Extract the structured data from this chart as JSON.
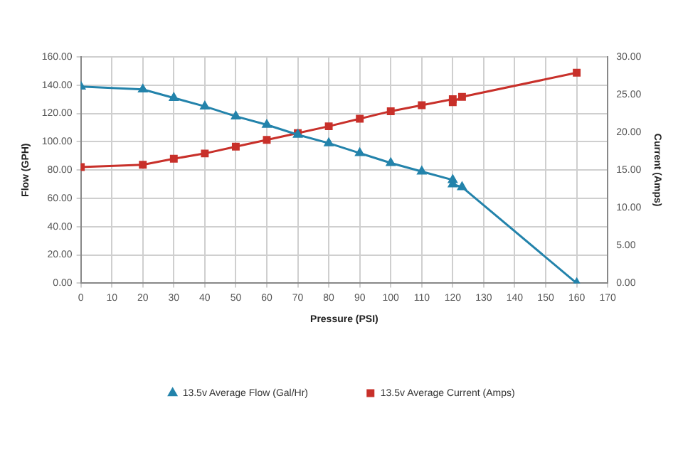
{
  "chart_data": {
    "type": "line",
    "xlabel": "Pressure (PSI)",
    "ylabel": "Flow (GPH)",
    "y2label": "Current (Amps)",
    "xlim": [
      0,
      170
    ],
    "xticks": [
      0,
      10,
      20,
      30,
      40,
      50,
      60,
      70,
      80,
      90,
      100,
      110,
      120,
      130,
      140,
      150,
      160,
      170
    ],
    "ylim": [
      0,
      160
    ],
    "yticks": [
      {
        "value": 0,
        "label": "0.00"
      },
      {
        "value": 20,
        "label": "20.00"
      },
      {
        "value": 40,
        "label": "40.00"
      },
      {
        "value": 60,
        "label": "60.00"
      },
      {
        "value": 80,
        "label": "80.00"
      },
      {
        "value": 100,
        "label": "100.00"
      },
      {
        "value": 120,
        "label": "120.00"
      },
      {
        "value": 140,
        "label": "140.00"
      },
      {
        "value": 160,
        "label": "160.00"
      }
    ],
    "y2lim": [
      0,
      30
    ],
    "y2ticks": [
      {
        "value": 0,
        "label": "0.00"
      },
      {
        "value": 5,
        "label": "5.00"
      },
      {
        "value": 10,
        "label": "10.00"
      },
      {
        "value": 15,
        "label": "15.00"
      },
      {
        "value": 20,
        "label": "20.00"
      },
      {
        "value": 25,
        "label": "25.00"
      },
      {
        "value": 30,
        "label": "30.00"
      }
    ],
    "grid": true,
    "legend": "bottom",
    "series": [
      {
        "name": "13.5v Average Flow (Gal/Hr)",
        "color": "#2383ab",
        "marker": "triangle",
        "x": [
          0,
          20,
          30,
          40,
          50,
          60,
          70,
          80,
          90,
          100,
          110,
          120,
          120,
          123,
          160
        ],
        "values": [
          139,
          137,
          131,
          125,
          118,
          112,
          105,
          99,
          92,
          85,
          79,
          73,
          70,
          68,
          0
        ]
      },
      {
        "name": "13.5v Average Current (Amps)",
        "color": "#c8302a",
        "marker": "square",
        "axis": "y2",
        "x": [
          0,
          20,
          30,
          40,
          50,
          60,
          70,
          80,
          90,
          100,
          110,
          120,
          120,
          123,
          160
        ],
        "values": [
          15.4,
          15.7,
          16.5,
          17.2,
          18.1,
          19,
          19.9,
          20.8,
          21.8,
          22.8,
          23.6,
          24.4,
          24,
          24.7,
          27.9
        ]
      }
    ]
  }
}
